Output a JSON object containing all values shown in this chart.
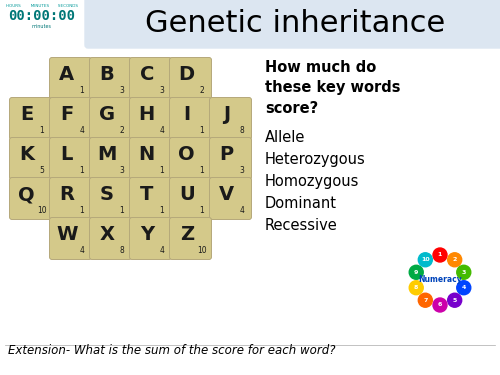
{
  "title": "Genetic inheritance",
  "title_bg": "#dce6f1",
  "bg_color": "#ffffff",
  "timer_text": "00:00:00",
  "timer_label": "minutes",
  "scrabble_tiles": [
    [
      "",
      "A1",
      "B3",
      "C3",
      "D2",
      ""
    ],
    [
      "E1",
      "F4",
      "G2",
      "H4",
      "I1",
      "J8"
    ],
    [
      "K5",
      "L1",
      "M3",
      "N1",
      "O1",
      "P3"
    ],
    [
      "Q10",
      "R1",
      "S1",
      "T1",
      "U1",
      "V4"
    ],
    [
      "",
      "W4",
      "X8",
      "Y4",
      "Z10",
      ""
    ]
  ],
  "tile_color": "#d4c98a",
  "tile_edge": "#b5a87a",
  "question_bold": "How much do\nthese key words\nscore?",
  "keywords": [
    "Allele",
    "Heterozygous",
    "Homozygous",
    "Dominant",
    "Recessive"
  ],
  "extension_text": "Extension- What is the sum of the score for each word?",
  "numeracy_colors": [
    "#ff0000",
    "#ff8800",
    "#44bb00",
    "#0044ff",
    "#7700cc",
    "#cc00aa",
    "#ff6600",
    "#ffcc00",
    "#00aa44",
    "#00bbcc"
  ],
  "numeracy_labels": [
    "1",
    "2",
    "3",
    "4",
    "5",
    "6",
    "7",
    "8",
    "9",
    "10"
  ]
}
